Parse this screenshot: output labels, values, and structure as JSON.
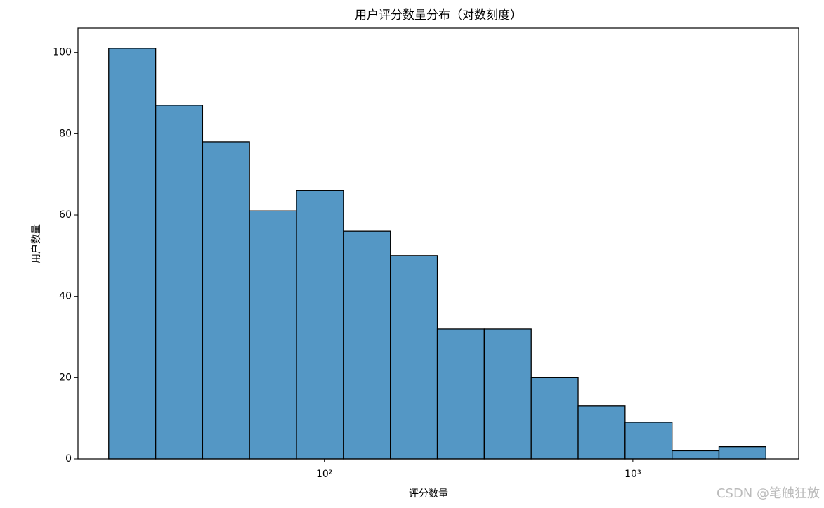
{
  "chart_data": {
    "type": "histogram",
    "title": "用户评分数量分布（对数刻度）",
    "xlabel": "评分数量",
    "ylabel": "用户数量",
    "bins": [
      20,
      28.4,
      40.3,
      57.2,
      81.2,
      115.3,
      163.7,
      232.4,
      329.9,
      468.4,
      664.9,
      943.9,
      1340,
      1902,
      2700
    ],
    "values": [
      101,
      87,
      78,
      61,
      66,
      56,
      50,
      32,
      32,
      20,
      13,
      9,
      2,
      3
    ],
    "color": "#5497c5",
    "edgecolor": "#000000",
    "xscale": "log",
    "xlim": [
      15.9,
      3449
    ],
    "ylim": [
      0,
      106
    ],
    "xticks": [
      {
        "value": 100,
        "label": "10²"
      },
      {
        "value": 1000,
        "label": "10³"
      }
    ],
    "yticks": [
      0,
      20,
      40,
      60,
      80,
      100
    ],
    "grid": false,
    "watermark": "CSDN @笔触狂放"
  }
}
